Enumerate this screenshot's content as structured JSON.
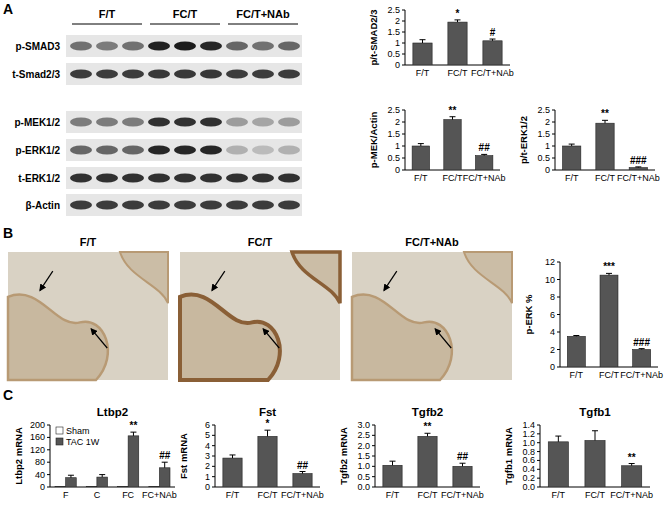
{
  "figure": {
    "panel_labels": [
      "A",
      "B",
      "C"
    ],
    "blot": {
      "columns": [
        "F/T",
        "FC/T",
        "FC/T+NAb"
      ],
      "rows": [
        "p-SMAD3",
        "t-Smad2/3",
        "p-MEK1/2",
        "p-ERK1/2",
        "t-ERK1/2",
        "β-Actin"
      ]
    },
    "micrographs": {
      "titles": [
        "F/T",
        "FC/T",
        "FC/T+NAb"
      ]
    }
  },
  "chart_data": [
    {
      "type": "bar",
      "y_label": "p/t-SMAD2/3",
      "categories": [
        "F/T",
        "FC/T",
        "FC/T+NAb"
      ],
      "values": [
        1.0,
        1.95,
        1.1
      ],
      "errors": [
        0.15,
        0.1,
        0.08
      ],
      "annotations": [
        null,
        "*",
        "#"
      ],
      "color": "#555555",
      "ylim": [
        0,
        2.5
      ],
      "yticks": [
        0,
        0.5,
        1,
        1.5,
        2,
        2.5
      ]
    },
    {
      "type": "bar",
      "y_label": "p-MEK/Actin",
      "categories": [
        "F/T",
        "FC/T",
        "FC/T+NAb"
      ],
      "values": [
        1.0,
        2.1,
        0.6
      ],
      "errors": [
        0.1,
        0.12,
        0.05
      ],
      "annotations": [
        null,
        "**",
        "##"
      ],
      "color": "#555555",
      "ylim": [
        0,
        2.5
      ],
      "yticks": [
        0,
        0.5,
        1,
        1.5,
        2,
        2.5
      ]
    },
    {
      "type": "bar",
      "y_label": "p/t-ERK1/2",
      "categories": [
        "F/T",
        "FC/T",
        "FC/T+NAb"
      ],
      "values": [
        1.0,
        1.95,
        0.1
      ],
      "errors": [
        0.08,
        0.12,
        0.03
      ],
      "annotations": [
        null,
        "**",
        "###"
      ],
      "color": "#555555",
      "ylim": [
        0,
        2.5
      ],
      "yticks": [
        0,
        0.5,
        1,
        1.5,
        2,
        2.5
      ]
    },
    {
      "type": "bar",
      "y_label": "p-ERK %",
      "categories": [
        "F/T",
        "FC/T",
        "FC/T+NAb"
      ],
      "values": [
        3.5,
        10.5,
        2.0
      ],
      "errors": [
        0.1,
        0.2,
        0.1
      ],
      "annotations": [
        null,
        "***",
        "###"
      ],
      "color": "#555555",
      "ylim": [
        0,
        12
      ],
      "yticks": [
        0,
        2,
        4,
        6,
        8,
        10,
        12
      ]
    },
    {
      "type": "bar",
      "title": "Ltbp2",
      "y_label": "Ltbp2 mRNA",
      "categories": [
        "F",
        "C",
        "FC",
        "FC+NAb"
      ],
      "series": [
        {
          "name": "Sham",
          "color": "#ffffff",
          "values": [
            1,
            1,
            1,
            1
          ]
        },
        {
          "name": "TAC 1W",
          "color": "#555555",
          "values": [
            30,
            32,
            165,
            62
          ],
          "errors": [
            8,
            8,
            12,
            18
          ],
          "annotations": [
            null,
            null,
            "**",
            "##"
          ]
        }
      ],
      "legend": "upper left",
      "ylim": [
        0,
        200
      ],
      "yticks": [
        0,
        40,
        80,
        120,
        160,
        200
      ]
    },
    {
      "type": "bar",
      "title": "Fst",
      "y_label": "Fst mRNA",
      "categories": [
        "F/T",
        "FC/T",
        "FC/T+NAb"
      ],
      "values": [
        2.8,
        4.9,
        1.3
      ],
      "errors": [
        0.3,
        0.6,
        0.2
      ],
      "annotations": [
        null,
        "*",
        "##"
      ],
      "color": "#555555",
      "ylim": [
        0,
        6
      ],
      "yticks": [
        0,
        1,
        2,
        3,
        4,
        5,
        6
      ]
    },
    {
      "type": "bar",
      "title": "Tgfb2",
      "y_label": "Tgfb2 mRNA",
      "categories": [
        "F/T",
        "FC/T",
        "FC/T+NAb"
      ],
      "values": [
        1.05,
        2.45,
        1.0
      ],
      "errors": [
        0.2,
        0.15,
        0.15
      ],
      "annotations": [
        null,
        "**",
        "##"
      ],
      "color": "#555555",
      "ylim": [
        0,
        3
      ],
      "yticks": [
        {
          "value": 0,
          "label": "0.0"
        },
        {
          "value": 0.5,
          "label": "0.5"
        },
        {
          "value": 1,
          "label": "1.0"
        },
        {
          "value": 1.5,
          "label": "1.5"
        },
        {
          "value": 2,
          "label": "2.0"
        },
        {
          "value": 2.5,
          "label": "2.5"
        },
        {
          "value": 3,
          "label": "3.0"
        }
      ]
    },
    {
      "type": "bar",
      "title": "Tgfb1",
      "y_label": "Tgfb1 mRNA",
      "categories": [
        "F/T",
        "FC/T",
        "FC/T+NAb"
      ],
      "values": [
        1.02,
        1.05,
        0.48
      ],
      "errors": [
        0.13,
        0.22,
        0.05
      ],
      "annotations": [
        null,
        null,
        "**"
      ],
      "color": "#555555",
      "ylim": [
        0,
        1.4
      ],
      "yticks": [
        {
          "value": 0,
          "label": "0.0"
        },
        {
          "value": 0.2,
          "label": "0.2"
        },
        {
          "value": 0.4,
          "label": "0.4"
        },
        {
          "value": 0.6,
          "label": "0.6"
        },
        {
          "value": 0.8,
          "label": "0.8"
        },
        {
          "value": 1,
          "label": "1.0"
        },
        {
          "value": 1.2,
          "label": "1.2"
        },
        {
          "value": 1.4,
          "label": "1.4"
        }
      ]
    }
  ]
}
